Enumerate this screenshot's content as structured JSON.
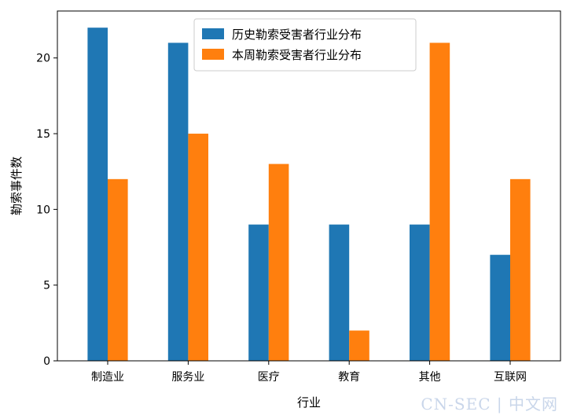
{
  "chart_data": {
    "type": "bar",
    "xlabel": "行业",
    "ylabel": "勒索事件数",
    "categories": [
      "制造业",
      "服务业",
      "医疗",
      "教育",
      "其他",
      "互联网"
    ],
    "series": [
      {
        "name": "历史勒索受害者行业分布",
        "color": "#1f77b4",
        "values": [
          22,
          21,
          9,
          9,
          9,
          7
        ]
      },
      {
        "name": "本周勒索受害者行业分布",
        "color": "#ff7f0e",
        "values": [
          12,
          15,
          13,
          2,
          21,
          12
        ]
      }
    ],
    "ylim": [
      0,
      23.1
    ],
    "yticks": [
      0,
      5,
      10,
      15,
      20
    ],
    "grid": false,
    "legend_position": "top-center"
  },
  "watermark": "CN-SEC | 中文网"
}
